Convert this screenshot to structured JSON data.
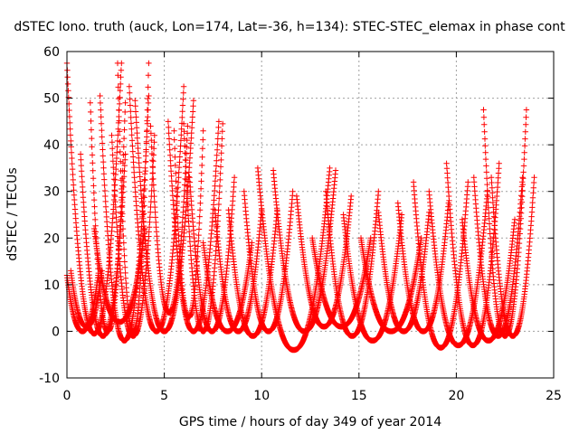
{
  "chart_data": {
    "type": "scatter",
    "title": "dSTEC Iono. truth (auck, Lon=174, Lat=-36, h=134): STEC-STEC_elemax in phase cont",
    "xlabel": "GPS time / hours of day 349 of year 2014",
    "ylabel": "dSTEC  / TECUs",
    "xlim": [
      0,
      25
    ],
    "ylim": [
      -10,
      60
    ],
    "xticks": [
      0,
      5,
      10,
      15,
      20,
      25
    ],
    "yticks": [
      -10,
      0,
      10,
      20,
      30,
      40,
      50,
      60
    ],
    "grid": true,
    "marker": "+",
    "color": "#ff0000",
    "passes": [
      {
        "start": 0.0,
        "end": 1.6,
        "max": 12,
        "min": 0
      },
      {
        "start": 0.0,
        "end": 2.8,
        "max": 57.5,
        "min": -0.5
      },
      {
        "start": 0.2,
        "end": 1.8,
        "max": 13,
        "min": 1
      },
      {
        "start": 0.7,
        "end": 3.0,
        "max": 38,
        "min": -1
      },
      {
        "start": 1.2,
        "end": 3.0,
        "max": 49,
        "min": 0
      },
      {
        "start": 1.7,
        "end": 4.2,
        "max": 50.5,
        "min": -2
      },
      {
        "start": 1.4,
        "end": 4.0,
        "max": 22,
        "min": 2
      },
      {
        "start": 2.3,
        "end": 4.5,
        "max": 42,
        "min": -1
      },
      {
        "start": 2.6,
        "end": 4.2,
        "max": 57.5,
        "min": 0
      },
      {
        "start": 3.2,
        "end": 6.0,
        "max": 52.5,
        "min": 0
      },
      {
        "start": 3.5,
        "end": 6.5,
        "max": 49.5,
        "min": 0
      },
      {
        "start": 4.3,
        "end": 6.2,
        "max": 44,
        "min": 4
      },
      {
        "start": 5.2,
        "end": 7.8,
        "max": 45,
        "min": 0
      },
      {
        "start": 5.5,
        "end": 7.0,
        "max": 43,
        "min": 3
      },
      {
        "start": 6.0,
        "end": 8.0,
        "max": 44.5,
        "min": 0
      },
      {
        "start": 6.3,
        "end": 8.6,
        "max": 33,
        "min": 0
      },
      {
        "start": 7.0,
        "end": 9.5,
        "max": 19,
        "min": 0
      },
      {
        "start": 7.6,
        "end": 10.0,
        "max": 26,
        "min": 0
      },
      {
        "start": 8.3,
        "end": 10.8,
        "max": 26,
        "min": -1
      },
      {
        "start": 9.1,
        "end": 11.6,
        "max": 30,
        "min": 0
      },
      {
        "start": 9.8,
        "end": 13.5,
        "max": 35,
        "min": -4
      },
      {
        "start": 10.6,
        "end": 13.8,
        "max": 34.5,
        "min": 0
      },
      {
        "start": 11.8,
        "end": 14.6,
        "max": 29,
        "min": 1
      },
      {
        "start": 12.6,
        "end": 15.6,
        "max": 20,
        "min": 1
      },
      {
        "start": 13.3,
        "end": 16.0,
        "max": 30,
        "min": -1
      },
      {
        "start": 14.2,
        "end": 17.2,
        "max": 25,
        "min": -2
      },
      {
        "start": 15.1,
        "end": 18.2,
        "max": 20,
        "min": 0
      },
      {
        "start": 16.0,
        "end": 18.6,
        "max": 25.5,
        "min": 0
      },
      {
        "start": 17.0,
        "end": 19.6,
        "max": 27.5,
        "min": 0
      },
      {
        "start": 17.8,
        "end": 20.6,
        "max": 32,
        "min": -3.5
      },
      {
        "start": 18.6,
        "end": 21.6,
        "max": 30,
        "min": -3
      },
      {
        "start": 19.5,
        "end": 22.2,
        "max": 36,
        "min": -3
      },
      {
        "start": 20.3,
        "end": 23.0,
        "max": 24,
        "min": -2
      },
      {
        "start": 20.9,
        "end": 23.4,
        "max": 33,
        "min": -1
      },
      {
        "start": 21.4,
        "end": 23.6,
        "max": 47.5,
        "min": -1
      },
      {
        "start": 21.8,
        "end": 24.0,
        "max": 33,
        "min": -1
      }
    ]
  }
}
